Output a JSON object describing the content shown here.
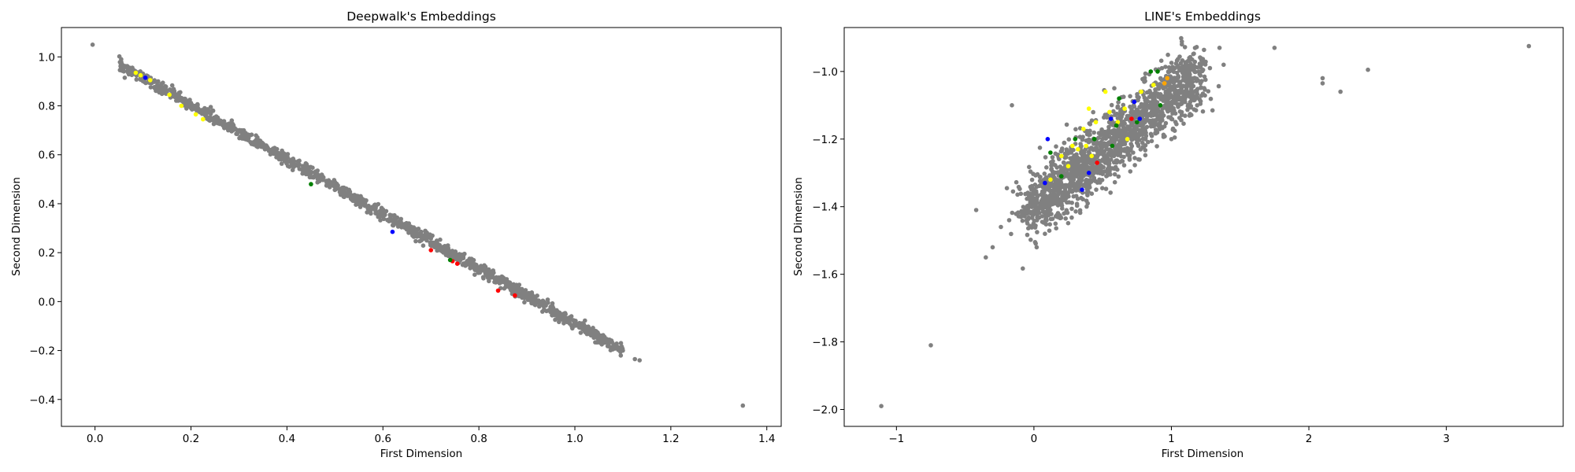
{
  "chart_data": [
    {
      "type": "scatter",
      "title": "Deepwalk's Embeddings",
      "xlabel": "First Dimension",
      "ylabel": "Second Dimension",
      "xlim": [
        -0.07,
        1.43
      ],
      "ylim": [
        -0.51,
        1.12
      ],
      "xticks": [
        0.0,
        0.2,
        0.4,
        0.6,
        0.8,
        1.0,
        1.2,
        1.4
      ],
      "xtick_labels": [
        "0.0",
        "0.2",
        "0.4",
        "0.6",
        "0.8",
        "1.0",
        "1.2",
        "1.4"
      ],
      "yticks": [
        -0.4,
        -0.2,
        0.0,
        0.2,
        0.4,
        0.6,
        0.8,
        1.0
      ],
      "ytick_labels": [
        "−0.4",
        "−0.2",
        "0.0",
        "0.2",
        "0.4",
        "0.6",
        "0.8",
        "1.0"
      ],
      "grid": false,
      "band": {
        "x_start": 0.05,
        "x_end": 1.1,
        "y_at_start": 0.97,
        "y_at_end": -0.2,
        "spread": 0.012,
        "count": 1300,
        "color": "#808080"
      },
      "points": [
        {
          "x": -0.005,
          "y": 1.05,
          "color": "#808080"
        },
        {
          "x": 0.055,
          "y": 0.975,
          "color": "#808080"
        },
        {
          "x": 0.06,
          "y": 0.96,
          "color": "#808080"
        },
        {
          "x": 0.075,
          "y": 0.95,
          "color": "#808080"
        },
        {
          "x": 1.1,
          "y": -0.2,
          "color": "#808080"
        },
        {
          "x": 1.125,
          "y": -0.235,
          "color": "#808080"
        },
        {
          "x": 1.135,
          "y": -0.24,
          "color": "#808080"
        },
        {
          "x": 1.35,
          "y": -0.425,
          "color": "#808080"
        },
        {
          "x": 0.085,
          "y": 0.935,
          "color": "#ffff00"
        },
        {
          "x": 0.095,
          "y": 0.925,
          "color": "#ffff00"
        },
        {
          "x": 0.115,
          "y": 0.905,
          "color": "#ffff00"
        },
        {
          "x": 0.155,
          "y": 0.845,
          "color": "#ffff00"
        },
        {
          "x": 0.18,
          "y": 0.8,
          "color": "#ffff00"
        },
        {
          "x": 0.21,
          "y": 0.765,
          "color": "#ffff00"
        },
        {
          "x": 0.225,
          "y": 0.745,
          "color": "#ffff00"
        },
        {
          "x": 0.105,
          "y": 0.915,
          "color": "#0000ff"
        },
        {
          "x": 0.62,
          "y": 0.285,
          "color": "#0000ff"
        },
        {
          "x": 0.745,
          "y": 0.165,
          "color": "#ff0000"
        },
        {
          "x": 0.755,
          "y": 0.155,
          "color": "#ff0000"
        },
        {
          "x": 0.84,
          "y": 0.045,
          "color": "#ff0000"
        },
        {
          "x": 0.875,
          "y": 0.025,
          "color": "#ff0000"
        },
        {
          "x": 0.7,
          "y": 0.21,
          "color": "#ff0000"
        },
        {
          "x": 0.74,
          "y": 0.17,
          "color": "#008000"
        },
        {
          "x": 0.45,
          "y": 0.48,
          "color": "#008000"
        }
      ]
    },
    {
      "type": "scatter",
      "title": "LINE's Embeddings",
      "xlabel": "First Dimension",
      "ylabel": "Second Dimension",
      "xlim": [
        -1.38,
        3.85
      ],
      "ylim": [
        -2.05,
        -0.87
      ],
      "xticks": [
        -1,
        0,
        1,
        2,
        3
      ],
      "xtick_labels": [
        "−1",
        "0",
        "1",
        "2",
        "3"
      ],
      "yticks": [
        -2.0,
        -1.8,
        -1.6,
        -1.4,
        -1.2,
        -1.0
      ],
      "ytick_labels": [
        "−2.0",
        "−1.8",
        "−1.6",
        "−1.4",
        "−1.2",
        "−1.0"
      ],
      "grid": false,
      "cluster": {
        "x_start": -0.05,
        "x_end": 1.2,
        "y_at_start": -1.42,
        "y_at_end": -1.0,
        "spread": 0.045,
        "count": 1700,
        "color": "#808080"
      },
      "points": [
        {
          "x": -1.11,
          "y": -1.99,
          "color": "#808080"
        },
        {
          "x": -0.75,
          "y": -1.81,
          "color": "#808080"
        },
        {
          "x": -0.42,
          "y": -1.41,
          "color": "#808080"
        },
        {
          "x": -0.35,
          "y": -1.55,
          "color": "#808080"
        },
        {
          "x": -0.3,
          "y": -1.52,
          "color": "#808080"
        },
        {
          "x": -0.24,
          "y": -1.46,
          "color": "#808080"
        },
        {
          "x": -0.18,
          "y": -1.44,
          "color": "#808080"
        },
        {
          "x": -0.16,
          "y": -1.1,
          "color": "#808080"
        },
        {
          "x": 0.02,
          "y": -1.52,
          "color": "#808080"
        },
        {
          "x": 1.0,
          "y": -1.2,
          "color": "#808080"
        },
        {
          "x": 1.13,
          "y": -0.96,
          "color": "#808080"
        },
        {
          "x": 1.2,
          "y": -1.0,
          "color": "#808080"
        },
        {
          "x": 1.28,
          "y": -0.99,
          "color": "#808080"
        },
        {
          "x": 1.35,
          "y": -0.93,
          "color": "#808080"
        },
        {
          "x": 1.38,
          "y": -0.98,
          "color": "#808080"
        },
        {
          "x": 1.75,
          "y": -0.93,
          "color": "#808080"
        },
        {
          "x": 2.1,
          "y": -1.02,
          "color": "#808080"
        },
        {
          "x": 2.1,
          "y": -1.035,
          "color": "#808080"
        },
        {
          "x": 2.23,
          "y": -1.06,
          "color": "#808080"
        },
        {
          "x": 2.43,
          "y": -0.995,
          "color": "#808080"
        },
        {
          "x": 3.6,
          "y": -0.925,
          "color": "#808080"
        },
        {
          "x": 0.2,
          "y": -1.25,
          "color": "#ffff00"
        },
        {
          "x": 0.28,
          "y": -1.22,
          "color": "#ffff00"
        },
        {
          "x": 0.32,
          "y": -1.23,
          "color": "#ffff00"
        },
        {
          "x": 0.38,
          "y": -1.22,
          "color": "#ffff00"
        },
        {
          "x": 0.42,
          "y": -1.25,
          "color": "#ffff00"
        },
        {
          "x": 0.36,
          "y": -1.17,
          "color": "#ffff00"
        },
        {
          "x": 0.45,
          "y": -1.15,
          "color": "#ffff00"
        },
        {
          "x": 0.55,
          "y": -1.12,
          "color": "#ffff00"
        },
        {
          "x": 0.61,
          "y": -1.15,
          "color": "#ffff00"
        },
        {
          "x": 0.66,
          "y": -1.11,
          "color": "#ffff00"
        },
        {
          "x": 0.4,
          "y": -1.11,
          "color": "#ffff00"
        },
        {
          "x": 0.52,
          "y": -1.06,
          "color": "#ffff00"
        },
        {
          "x": 0.78,
          "y": -1.06,
          "color": "#ffff00"
        },
        {
          "x": 0.25,
          "y": -1.28,
          "color": "#ffff00"
        },
        {
          "x": 0.12,
          "y": -1.32,
          "color": "#ffff00"
        },
        {
          "x": 0.87,
          "y": -1.04,
          "color": "#ffff00"
        },
        {
          "x": 0.68,
          "y": -1.2,
          "color": "#ffff00"
        },
        {
          "x": 0.9,
          "y": -1.0,
          "color": "#008000"
        },
        {
          "x": 0.92,
          "y": -1.1,
          "color": "#008000"
        },
        {
          "x": 0.6,
          "y": -1.16,
          "color": "#008000"
        },
        {
          "x": 0.3,
          "y": -1.2,
          "color": "#008000"
        },
        {
          "x": 0.2,
          "y": -1.31,
          "color": "#008000"
        },
        {
          "x": 0.57,
          "y": -1.22,
          "color": "#008000"
        },
        {
          "x": 0.85,
          "y": -1.0,
          "color": "#008000"
        },
        {
          "x": 0.12,
          "y": -1.24,
          "color": "#008000"
        },
        {
          "x": 0.62,
          "y": -1.08,
          "color": "#008000"
        },
        {
          "x": 0.75,
          "y": -1.15,
          "color": "#008000"
        },
        {
          "x": 0.44,
          "y": -1.2,
          "color": "#008000"
        },
        {
          "x": 0.4,
          "y": -1.3,
          "color": "#0000ff"
        },
        {
          "x": 0.73,
          "y": -1.09,
          "color": "#0000ff"
        },
        {
          "x": 0.56,
          "y": -1.14,
          "color": "#0000ff"
        },
        {
          "x": 0.1,
          "y": -1.2,
          "color": "#0000ff"
        },
        {
          "x": 0.35,
          "y": -1.35,
          "color": "#0000ff"
        },
        {
          "x": 0.08,
          "y": -1.33,
          "color": "#0000ff"
        },
        {
          "x": 0.77,
          "y": -1.14,
          "color": "#0000ff"
        },
        {
          "x": 0.97,
          "y": -1.02,
          "color": "#ffa500"
        },
        {
          "x": 0.95,
          "y": -1.035,
          "color": "#ffa500"
        },
        {
          "x": 0.46,
          "y": -1.27,
          "color": "#ff0000"
        },
        {
          "x": 0.71,
          "y": -1.14,
          "color": "#ff0000"
        }
      ]
    }
  ]
}
